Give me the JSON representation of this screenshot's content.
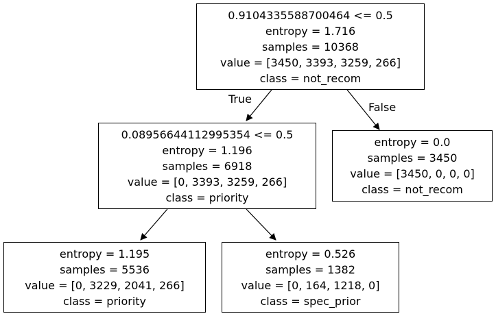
{
  "tree": {
    "nodes": [
      {
        "id": "root",
        "lines": [
          "0.9104335588700464 <= 0.5",
          "entropy = 1.716",
          "samples = 10368",
          "value = [3450, 3393, 3259, 266]",
          "class = not_recom"
        ]
      },
      {
        "id": "left",
        "lines": [
          "0.08956644112995354 <= 0.5",
          "entropy = 1.196",
          "samples = 6918",
          "value = [0, 3393, 3259, 266]",
          "class = priority"
        ]
      },
      {
        "id": "right",
        "lines": [
          "entropy = 0.0",
          "samples = 3450",
          "value = [3450, 0, 0, 0]",
          "class = not_recom"
        ]
      },
      {
        "id": "leftleft",
        "lines": [
          "entropy = 1.195",
          "samples = 5536",
          "value = [0, 3229, 2041, 266]",
          "class = priority"
        ]
      },
      {
        "id": "leftright",
        "lines": [
          "entropy = 0.526",
          "samples = 1382",
          "value = [0, 164, 1218, 0]",
          "class = spec_prior"
        ]
      }
    ],
    "edge_labels": {
      "true_label": "True",
      "false_label": "False"
    }
  }
}
